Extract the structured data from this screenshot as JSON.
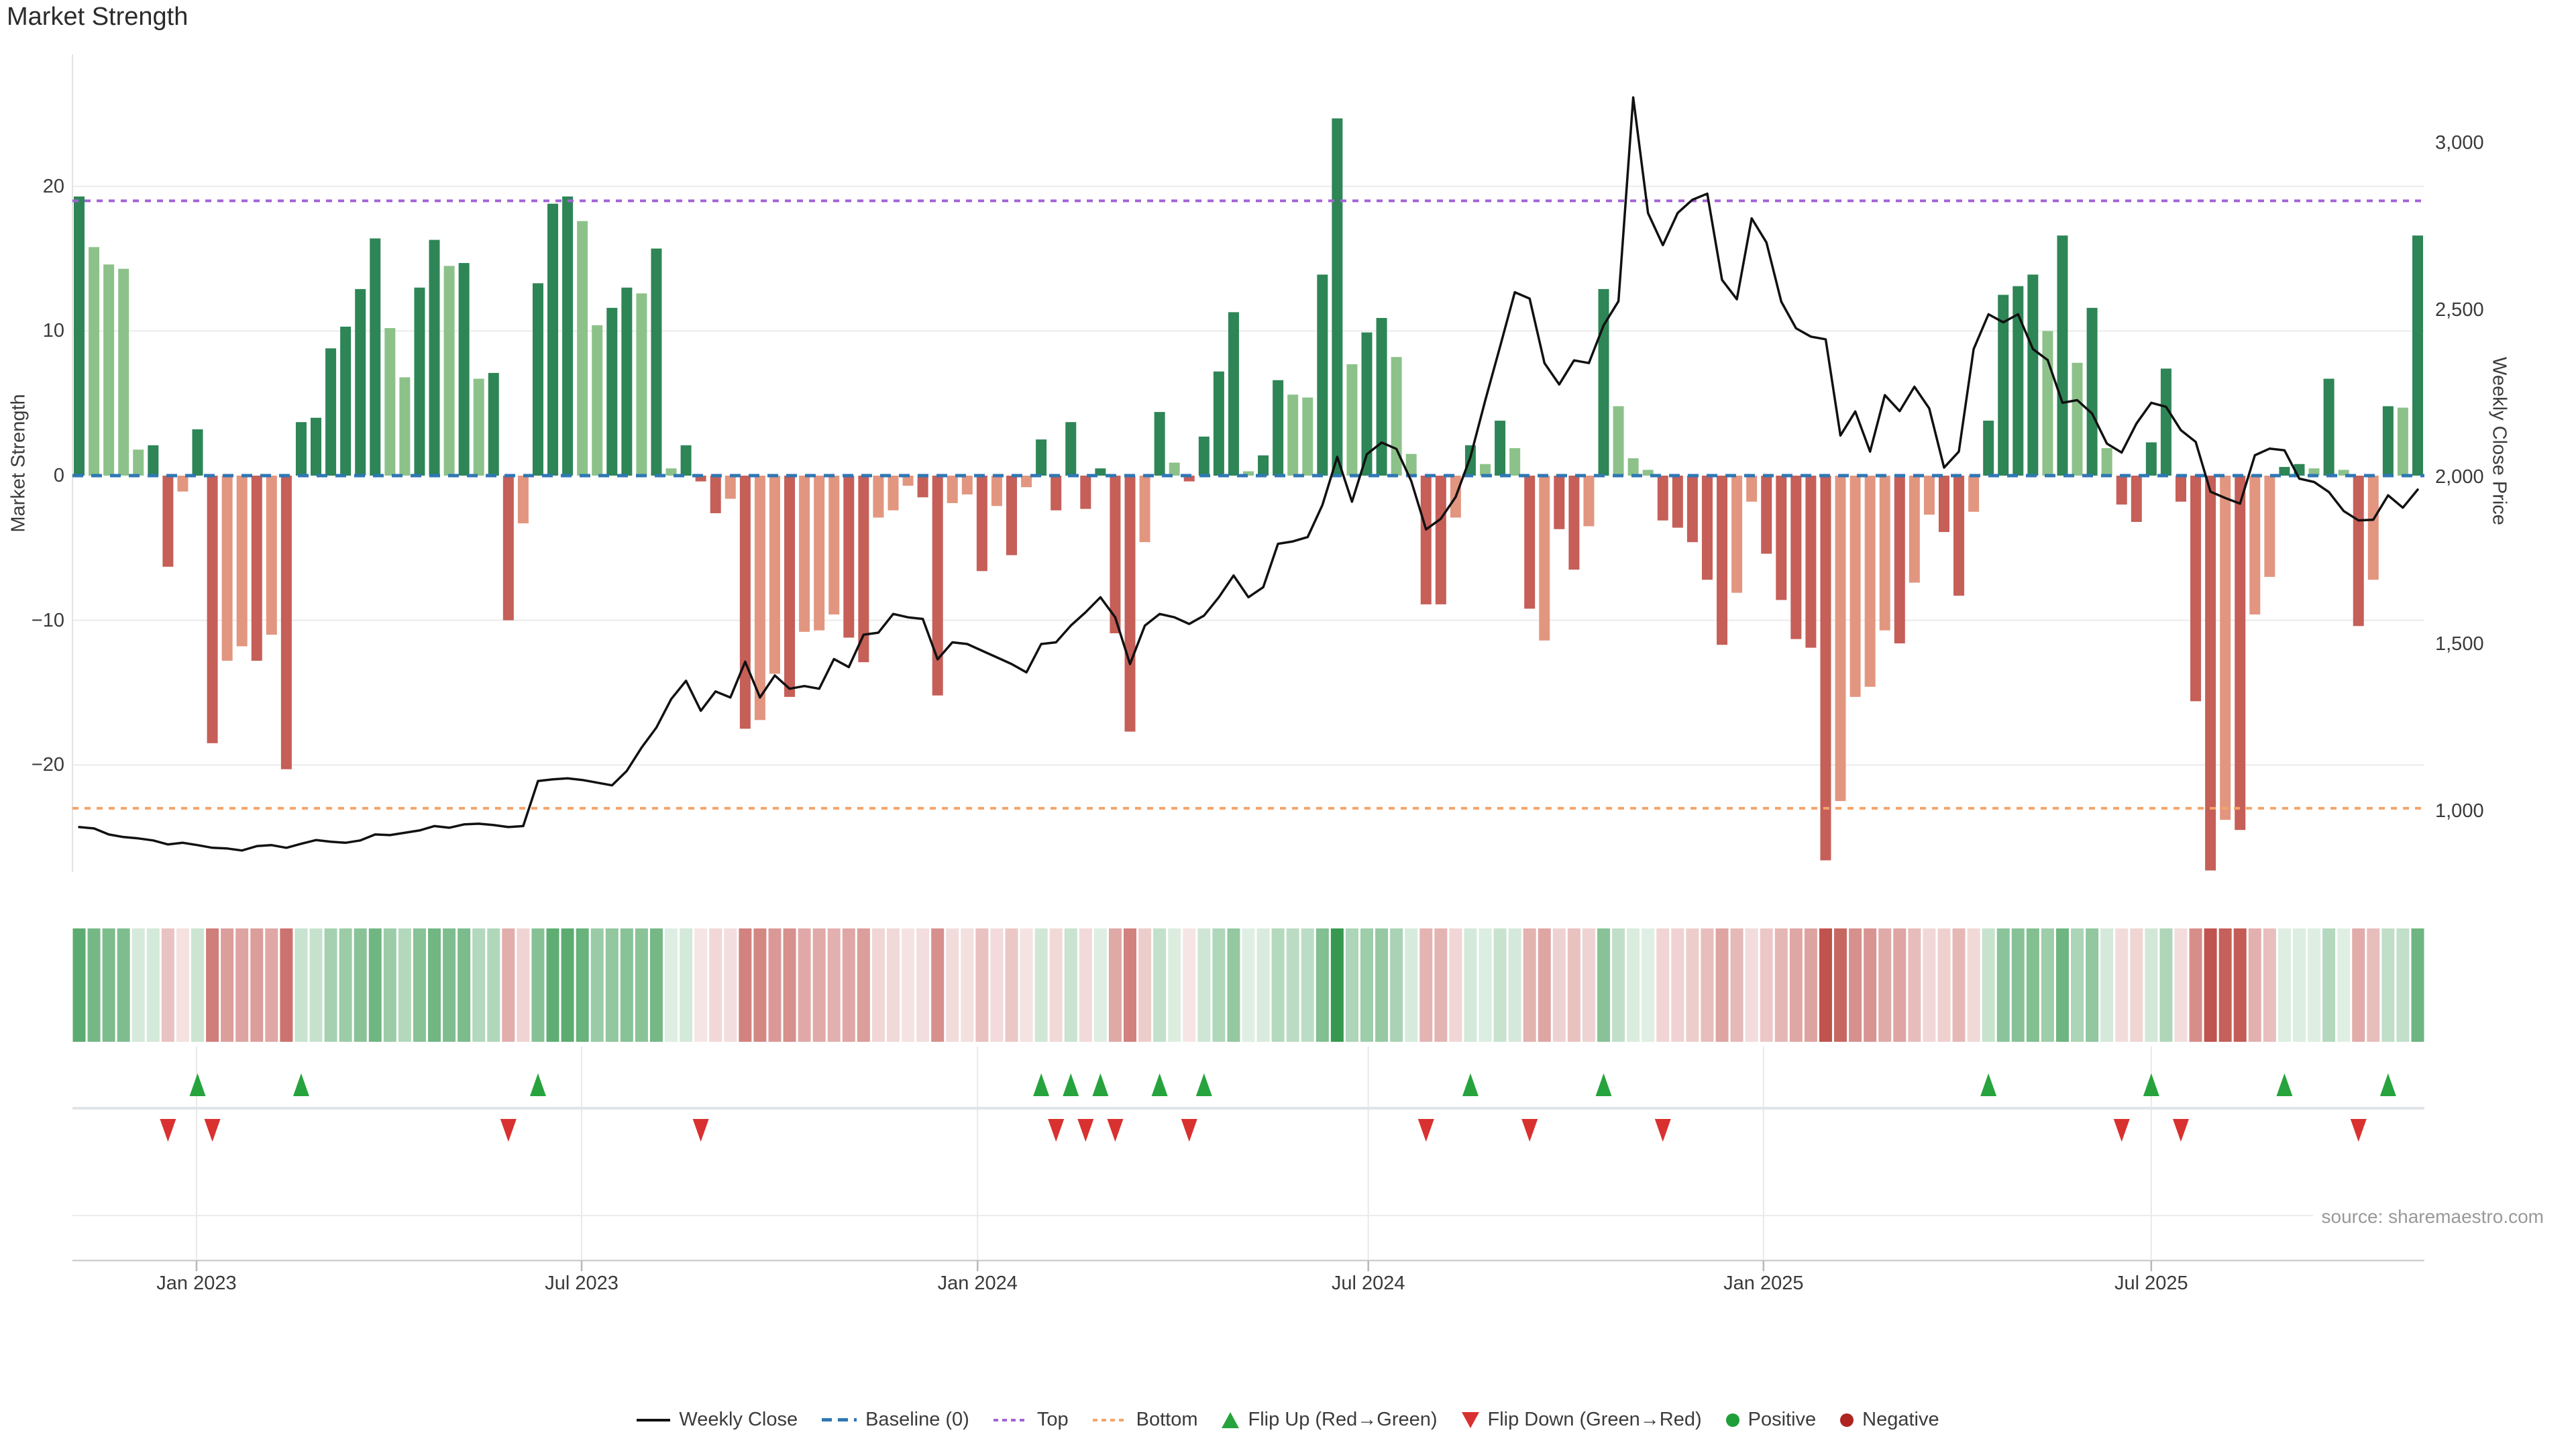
{
  "chart_data": {
    "type": "bar",
    "title": "Market Strength",
    "source": "source: sharemaestro.com",
    "left_axis": {
      "label": "Market Strength",
      "ticks": [
        {
          "label": "20",
          "value": 20
        },
        {
          "label": "10",
          "value": 10
        },
        {
          "label": "0",
          "value": 0
        },
        {
          "label": "−10",
          "value": -10
        },
        {
          "label": "−20",
          "value": -20
        }
      ],
      "ylim": [
        -28,
        27
      ]
    },
    "right_axis": {
      "label": "Weekly Close Price",
      "ticks": [
        {
          "label": "3,000",
          "value": 3000
        },
        {
          "label": "2,500",
          "value": 2500
        },
        {
          "label": "2,000",
          "value": 2000
        },
        {
          "label": "1,500",
          "value": 1500
        },
        {
          "label": "1,000",
          "value": 1000
        }
      ],
      "ylim": [
        780,
        3200
      ]
    },
    "x_ticks": [
      {
        "label": "Jan 2023",
        "week": 7.93
      },
      {
        "label": "Jul 2023",
        "week": 33.95
      },
      {
        "label": "Jan 2024",
        "week": 60.7
      },
      {
        "label": "Jul 2024",
        "week": 87.1
      },
      {
        "label": "Jan 2025",
        "week": 113.8
      },
      {
        "label": "Jul 2025",
        "week": 140.0
      }
    ],
    "baseline": 0,
    "top_threshold": 19,
    "bottom_threshold": -23,
    "weeks": 159,
    "strength": [
      19.3,
      15.8,
      14.6,
      14.3,
      1.8,
      2.1,
      -6.3,
      -1.1,
      3.2,
      -18.5,
      -12.8,
      -11.8,
      -12.8,
      -11,
      -20.3,
      3.7,
      4,
      8.8,
      10.3,
      12.9,
      16.4,
      10.2,
      6.8,
      13,
      16.3,
      14.5,
      14.7,
      6.7,
      7.1,
      -10,
      -3.3,
      13.3,
      18.8,
      19.3,
      17.6,
      10.4,
      11.6,
      13,
      12.6,
      15.7,
      0.5,
      2.1,
      -0.4,
      -2.6,
      -1.6,
      -17.5,
      -16.9,
      -13.7,
      -15.3,
      -10.8,
      -10.7,
      -9.6,
      -11.2,
      -12.9,
      -2.9,
      -2.4,
      -0.7,
      -1.5,
      -15.2,
      -1.9,
      -1.3,
      -6.6,
      -2.1,
      -5.5,
      -0.8,
      2.5,
      -2.4,
      3.7,
      -2.3,
      0.5,
      -10.9,
      -17.7,
      -4.6,
      4.4,
      0.9,
      -0.4,
      2.7,
      7.2,
      11.3,
      0.3,
      1.4,
      6.6,
      5.6,
      5.4,
      13.9,
      24.7,
      7.7,
      9.9,
      10.9,
      8.2,
      1.5,
      -8.9,
      -8.9,
      -2.9,
      2.1,
      0.8,
      3.8,
      1.9,
      -9.2,
      -11.4,
      -3.7,
      -6.5,
      -3.5,
      12.9,
      4.8,
      1.2,
      0.4,
      -3.1,
      -3.6,
      -4.6,
      -7.2,
      -11.7,
      -8.1,
      -1.8,
      -5.4,
      -8.6,
      -11.3,
      -11.9,
      -26.6,
      -22.5,
      -15.3,
      -14.6,
      -10.7,
      -11.6,
      -7.4,
      -2.7,
      -3.9,
      -8.3,
      -2.5,
      3.8,
      12.5,
      13.1,
      13.9,
      10,
      16.6,
      7.8,
      11.6,
      1.9,
      -2,
      -3.2,
      2.3,
      7.4,
      -1.8,
      -15.6,
      -27.3,
      -23.8,
      -24.5,
      -9.6,
      -7,
      0.6,
      0.8,
      0.5,
      6.7,
      0.4,
      -10.4,
      -7.2,
      4.8,
      4.7,
      16.6
    ],
    "bar_tone": "dllllddlddlldldddddddllddldlddldddllddldldddldlldlllddlllddlldldldddddddldlddddlddllddlddllddldldldlddldllldddddlldddddlllldllddlddddldldldddddddldllddldldldlddd",
    "weekly_close": [
      952,
      948,
      930,
      922,
      918,
      912,
      900,
      905,
      898,
      890,
      888,
      882,
      895,
      898,
      890,
      902,
      913,
      908,
      905,
      912,
      930,
      928,
      935,
      942,
      955,
      950,
      960,
      962,
      958,
      952,
      955,
      1090,
      1095,
      1098,
      1093,
      1085,
      1077,
      1120,
      1190,
      1250,
      1335,
      1390,
      1300,
      1358,
      1340,
      1447,
      1340,
      1406,
      1366,
      1374,
      1366,
      1455,
      1431,
      1528,
      1534,
      1590,
      1580,
      1575,
      1454,
      1505,
      1500,
      1480,
      1460,
      1440,
      1415,
      1500,
      1505,
      1555,
      1595,
      1640,
      1580,
      1440,
      1555,
      1590,
      1580,
      1560,
      1585,
      1640,
      1705,
      1640,
      1670,
      1800,
      1807,
      1820,
      1916,
      2060,
      1926,
      2068,
      2103,
      2084,
      1988,
      1843,
      1875,
      1940,
      2060,
      2229,
      2390,
      2553,
      2534,
      2341,
      2277,
      2349,
      2341,
      2454,
      2526,
      3136,
      2790,
      2694,
      2790,
      2830,
      2848,
      2590,
      2532,
      2774,
      2702,
      2525,
      2445,
      2420,
      2412,
      2124,
      2196,
      2076,
      2245,
      2197,
      2270,
      2205,
      2028,
      2076,
      2383,
      2487,
      2463,
      2487,
      2383,
      2350,
      2222,
      2230,
      2190,
      2100,
      2073,
      2160,
      2222,
      2210,
      2140,
      2105,
      1956,
      1937,
      1920,
      2065,
      2085,
      2080,
      1995,
      1985,
      1955,
      1898,
      1870,
      1872,
      1945,
      1908,
      1962
    ],
    "legend": [
      {
        "label": "Weekly Close",
        "swatch": "line",
        "color": "#111111"
      },
      {
        "label": "Baseline (0)",
        "swatch": "dashes",
        "color": "#2f77b5"
      },
      {
        "label": "Top",
        "swatch": "dots",
        "color": "#a263d6"
      },
      {
        "label": "Bottom",
        "swatch": "dots",
        "color": "#f3a469"
      },
      {
        "label": "Flip Up (Red→Green)",
        "swatch": "triangle-up",
        "color": "#27a33d"
      },
      {
        "label": "Flip Down (Green→Red)",
        "swatch": "triangle-down",
        "color": "#d8312f"
      },
      {
        "label": "Positive",
        "swatch": "circle",
        "color": "#1f9e3a"
      },
      {
        "label": "Negative",
        "swatch": "circle",
        "color": "#ae2420"
      }
    ],
    "colors": {
      "bar_pos_dark": "#2e8556",
      "bar_pos_light": "#8cc289",
      "bar_neg_dark": "#c55f58",
      "bar_neg_light": "#e29680",
      "baseline": "#2f77b5",
      "top_line": "#a263d6",
      "bottom_line": "#f3a469",
      "price_line": "#111111",
      "flip_up": "#27a33d",
      "flip_down": "#d8312f",
      "heat_pos": "#2e9448",
      "heat_neg": "#c0534e",
      "grid": "#ebebeb",
      "axis_line": "#cfcfcf",
      "tick_mark": "#b8b8b8",
      "separator": "#e0e4e8",
      "text": "#3b3b3b",
      "muted": "#999999"
    }
  }
}
